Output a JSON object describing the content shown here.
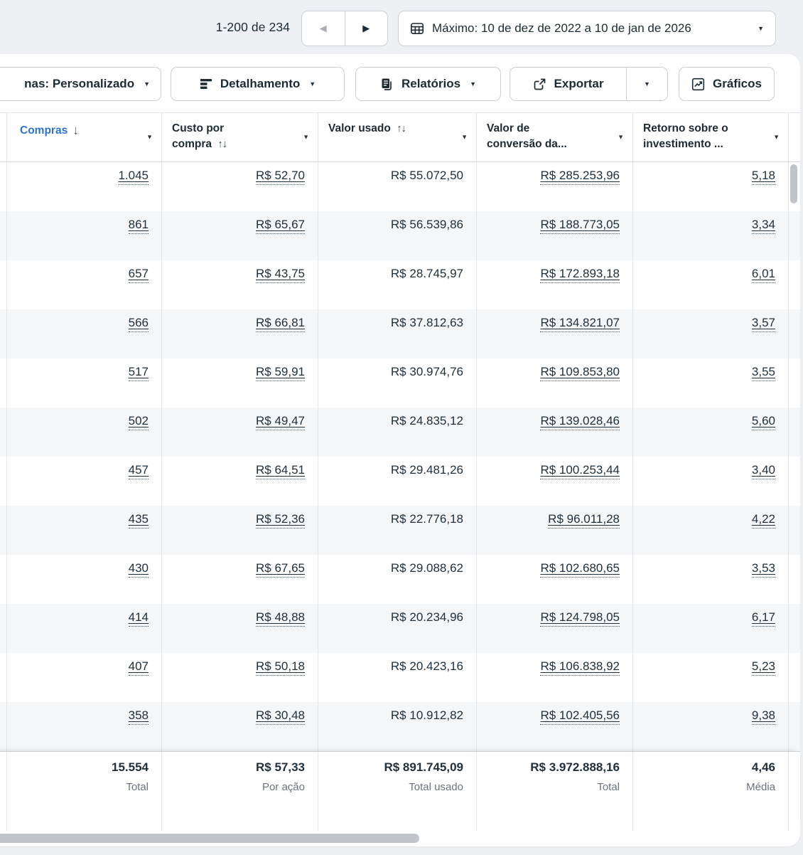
{
  "topbar": {
    "pagination": {
      "range_label": "1-200 de 234"
    },
    "date_range_label": "Máximo: 10 de dez de 2022 a 10 de jan de 2026"
  },
  "toolbar": {
    "columns_button_visible_text": "nas: Personalizado",
    "breakdown_button": "Detalhamento",
    "reports_button": "Relatórios",
    "export_button": "Exportar",
    "charts_button": "Gráficos"
  },
  "icons": {
    "prev": "◀",
    "next": "▶",
    "caret_down": "▼",
    "sort_desc": "↓",
    "sort_both": "↑↓",
    "calendar_grid": "calendar-grid-icon",
    "breakdown": "breakdown-bars-icon",
    "reports": "report-pages-icon",
    "export": "export-arrow-icon",
    "charts": "trend-chart-icon"
  },
  "table": {
    "columns": [
      {
        "key": "compras",
        "label": "Compras",
        "sort": "desc",
        "link": true
      },
      {
        "key": "custo_por_compra",
        "label": "Custo por compra",
        "sort": "both",
        "link": true
      },
      {
        "key": "valor_usado",
        "label": "Valor usado",
        "sort": "both",
        "link": false
      },
      {
        "key": "valor_conversao",
        "label": "Valor de conversão da...",
        "sort": "none",
        "link": true
      },
      {
        "key": "roas",
        "label": "Retorno sobre o investimento ...",
        "sort": "none",
        "link": true
      }
    ],
    "rows": [
      {
        "compras": "1.045",
        "custo_por_compra": "R$ 52,70",
        "valor_usado": "R$ 55.072,50",
        "valor_conversao": "R$ 285.253,96",
        "roas": "5,18"
      },
      {
        "compras": "861",
        "custo_por_compra": "R$ 65,67",
        "valor_usado": "R$ 56.539,86",
        "valor_conversao": "R$ 188.773,05",
        "roas": "3,34"
      },
      {
        "compras": "657",
        "custo_por_compra": "R$ 43,75",
        "valor_usado": "R$ 28.745,97",
        "valor_conversao": "R$ 172.893,18",
        "roas": "6,01"
      },
      {
        "compras": "566",
        "custo_por_compra": "R$ 66,81",
        "valor_usado": "R$ 37.812,63",
        "valor_conversao": "R$ 134.821,07",
        "roas": "3,57"
      },
      {
        "compras": "517",
        "custo_por_compra": "R$ 59,91",
        "valor_usado": "R$ 30.974,76",
        "valor_conversao": "R$ 109.853,80",
        "roas": "3,55"
      },
      {
        "compras": "502",
        "custo_por_compra": "R$ 49,47",
        "valor_usado": "R$ 24.835,12",
        "valor_conversao": "R$ 139.028,46",
        "roas": "5,60"
      },
      {
        "compras": "457",
        "custo_por_compra": "R$ 64,51",
        "valor_usado": "R$ 29.481,26",
        "valor_conversao": "R$ 100.253,44",
        "roas": "3,40"
      },
      {
        "compras": "435",
        "custo_por_compra": "R$ 52,36",
        "valor_usado": "R$ 22.776,18",
        "valor_conversao": "R$ 96.011,28",
        "roas": "4,22"
      },
      {
        "compras": "430",
        "custo_por_compra": "R$ 67,65",
        "valor_usado": "R$ 29.088,62",
        "valor_conversao": "R$ 102.680,65",
        "roas": "3,53"
      },
      {
        "compras": "414",
        "custo_por_compra": "R$ 48,88",
        "valor_usado": "R$ 20.234,96",
        "valor_conversao": "R$ 124.798,05",
        "roas": "6,17"
      },
      {
        "compras": "407",
        "custo_por_compra": "R$ 50,18",
        "valor_usado": "R$ 20.423,16",
        "valor_conversao": "R$ 106.838,92",
        "roas": "5,23"
      },
      {
        "compras": "358",
        "custo_por_compra": "R$ 30,48",
        "valor_usado": "R$ 10.912,82",
        "valor_conversao": "R$ 102.405,56",
        "roas": "9,38"
      }
    ],
    "totals": {
      "compras": "15.554",
      "compras_label": "Total",
      "custo_por_compra": "R$ 57,33",
      "custo_label": "Por ação",
      "valor_usado": "R$ 891.745,09",
      "usado_label": "Total usado",
      "valor_conversao": "R$ 3.972.888,16",
      "conversao_label": "Total",
      "roas": "4,46",
      "roas_label": "Média"
    }
  },
  "colors": {
    "accent_blue": "#2d72d2",
    "text": "#1c2b33",
    "muted_text": "#6a7480",
    "row_alt": "#f5f6f8",
    "border": "#ccd1d7",
    "scrollbar_thumb": "#c1c4c9",
    "page_bg": "#eef0f4"
  }
}
